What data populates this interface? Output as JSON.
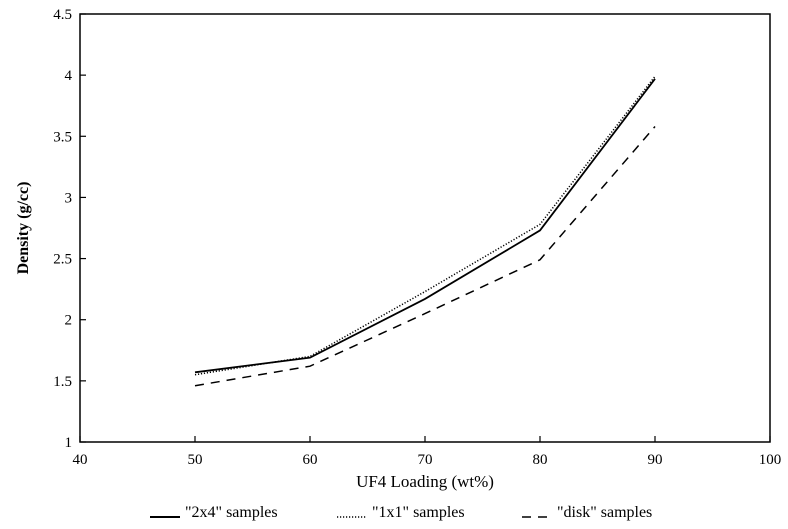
{
  "chart_data": {
    "type": "line",
    "title": "",
    "xlabel": "UF4 Loading (wt%)",
    "ylabel": "Density (g/cc)",
    "xlim": [
      40,
      100
    ],
    "ylim": [
      1,
      4.5
    ],
    "x_ticks": [
      "40",
      "50",
      "60",
      "70",
      "80",
      "90",
      "100"
    ],
    "y_ticks": [
      "1",
      "1.5",
      "2",
      "2.5",
      "3",
      "3.5",
      "4",
      "4.5"
    ],
    "x": [
      50,
      60,
      70,
      80,
      90
    ],
    "grid": false,
    "legend_position": "bottom",
    "series": [
      {
        "name": "\"2x4\" samples",
        "style": "solid",
        "color": "#000000",
        "values": [
          1.57,
          1.69,
          2.17,
          2.73,
          3.97
        ]
      },
      {
        "name": "\"1x1\" samples",
        "style": "dotted",
        "color": "#000000",
        "values": [
          1.55,
          1.7,
          2.23,
          2.78,
          3.99
        ]
      },
      {
        "name": "\"disk\" samples",
        "style": "dashed",
        "color": "#000000",
        "values": [
          1.46,
          1.62,
          2.05,
          2.49,
          3.58
        ]
      }
    ]
  }
}
